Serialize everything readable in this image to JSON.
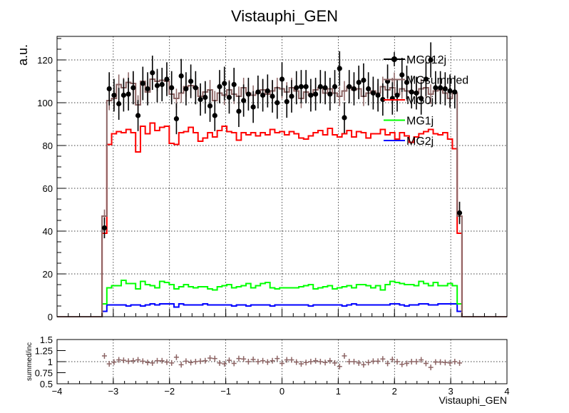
{
  "chart_data": [
    {
      "type": "line",
      "title": "Vistauphi_GEN",
      "xlabel": "",
      "ylabel": "a.u.",
      "xlim": [
        -4,
        4
      ],
      "ylim": [
        0,
        131
      ],
      "grid": true,
      "legend_position": "top-right",
      "x_ticks": [
        -4,
        -3,
        -2,
        -1,
        0,
        1,
        2,
        3,
        4
      ],
      "y_ticks": [
        0,
        20,
        40,
        60,
        80,
        100,
        120
      ],
      "bin_edges_range": [
        -3.2,
        3.2
      ],
      "series": [
        {
          "name": "MG012j",
          "style": "points",
          "color": "#000000",
          "values": [
            41.5,
            106.5,
            103.5,
            99.5,
            103.5,
            104,
            107,
            94,
            109,
            106.5,
            114,
            108,
            108.5,
            111,
            107,
            92.5,
            112.5,
            106.5,
            110,
            107,
            101.5,
            102.5,
            98.5,
            94,
            107.5,
            109,
            102.5,
            108.5,
            96,
            101,
            104,
            98,
            105,
            103.5,
            105.5,
            103,
            100,
            111,
            100.5,
            103,
            107,
            107.5,
            107.5,
            103.5,
            104,
            107.5,
            107,
            104,
            107.5,
            116,
            93,
            107.5,
            106.5,
            109.5,
            110.5,
            106.5,
            104.5,
            103.5,
            101.5,
            110,
            102,
            103.5,
            113,
            109.5,
            105,
            104.5,
            102,
            111,
            120,
            107,
            107,
            106.5,
            105.5,
            105,
            48.5
          ]
        },
        {
          "name": "MGsummed",
          "style": "step",
          "color": "#8C6464",
          "values": [
            47,
            101,
            102,
            108.5,
            107,
            109.5,
            109,
            99,
            110,
            105,
            111,
            110,
            110.5,
            110,
            104,
            102,
            104.5,
            107.5,
            108,
            107,
            103,
            105,
            106,
            101,
            104.5,
            103.5,
            106,
            104,
            103,
            107,
            104.5,
            103.5,
            104.5,
            106,
            104,
            105.5,
            107,
            106.5,
            105,
            107,
            105.5,
            102,
            105,
            103.5,
            106,
            107,
            104.5,
            106.5,
            104.5,
            103,
            105.5,
            107.5,
            106,
            106.5,
            103,
            104.5,
            105.5,
            104.5,
            107.5,
            106,
            107,
            104,
            106.5,
            105.5,
            105,
            104.5,
            106.5,
            107,
            104,
            105.5,
            106,
            104.5,
            102,
            104.5,
            47
          ]
        },
        {
          "name": "MG0j",
          "style": "step",
          "color": "#FF0000",
          "values": [
            39,
            80.5,
            85.5,
            86.5,
            86,
            87.5,
            86,
            77,
            89,
            85.5,
            90.5,
            87,
            88.5,
            89,
            81,
            80.5,
            86,
            86.5,
            88.5,
            86,
            82,
            83.5,
            86,
            84,
            87,
            89,
            86.5,
            86,
            82.5,
            86,
            85,
            86,
            84.5,
            86,
            85,
            87.5,
            86,
            86.5,
            85,
            86.5,
            85.5,
            83.5,
            83,
            84.5,
            86,
            87,
            85,
            88,
            85,
            84,
            85.5,
            87,
            84,
            86.5,
            86,
            83.5,
            85.5,
            85.5,
            87.5,
            85,
            86,
            83,
            86,
            84.5,
            81.5,
            84,
            85.5,
            86.5,
            87.5,
            85.5,
            85,
            86,
            83,
            78.5,
            39
          ]
        },
        {
          "name": "MG1j",
          "style": "step",
          "color": "#00FF00",
          "values": [
            6,
            13.5,
            14.5,
            14.5,
            17,
            15.5,
            15.5,
            13,
            16.5,
            15,
            14.5,
            13.5,
            16.5,
            16,
            15,
            13,
            14,
            15,
            14,
            13.5,
            14,
            14,
            13,
            12.5,
            14,
            14.5,
            15,
            13.5,
            14,
            14.5,
            15.5,
            13.5,
            14.5,
            15.5,
            16,
            13.5,
            13,
            13.5,
            13.5,
            13.5,
            13.5,
            14,
            14.5,
            15,
            13,
            13.5,
            14,
            14.5,
            13,
            13.5,
            14,
            14.5,
            13.5,
            15,
            15,
            14.5,
            13.5,
            14.5,
            12.5,
            15,
            16.5,
            16,
            15.5,
            15,
            15,
            14.5,
            16.5,
            15.5,
            14.5,
            16,
            14.5,
            14.5,
            15.5,
            14.5,
            6
          ]
        },
        {
          "name": "MG2j",
          "style": "step",
          "color": "#0000FF",
          "values": [
            2.5,
            5.5,
            5.5,
            5.5,
            5.5,
            5,
            5.5,
            5.5,
            5,
            5.5,
            6,
            5.5,
            6,
            6,
            6,
            4.5,
            6,
            5.5,
            5.5,
            5.5,
            5.5,
            6,
            5.5,
            5.5,
            5.5,
            5.5,
            5.5,
            5,
            5.5,
            5.5,
            5,
            5.5,
            5.5,
            5.5,
            5.5,
            5,
            5.5,
            5.5,
            5.5,
            5.5,
            5.5,
            5.5,
            5.5,
            5,
            5.5,
            5.5,
            5.5,
            5.5,
            5.5,
            5.5,
            5,
            5.5,
            6,
            5.5,
            5.5,
            5.5,
            5.5,
            5.5,
            5.5,
            5.5,
            6,
            6,
            5.5,
            5,
            5.5,
            5.5,
            6,
            6,
            5.5,
            5.5,
            6,
            6,
            6,
            6,
            2.5
          ]
        }
      ]
    },
    {
      "type": "scatter",
      "title": "",
      "xlabel": "Vistauphi_GEN",
      "ylabel": "summed/inc",
      "xlim": [
        -4,
        4
      ],
      "ylim": [
        0.5,
        1.5
      ],
      "grid": true,
      "x_ticks": [
        -4,
        -3,
        -2,
        -1,
        0,
        1,
        2,
        3,
        4
      ],
      "y_ticks": [
        0.5,
        0.75,
        1,
        1.25,
        1.5
      ],
      "series": [
        {
          "name": "",
          "style": "crosses",
          "color": "#8C6464",
          "values": [
            1.13,
            0.95,
            0.99,
            1.04,
            1.03,
            1.01,
            1.02,
            1.04,
            1.01,
            0.98,
            0.97,
            1.02,
            1.02,
            0.99,
            0.97,
            1.1,
            0.93,
            1.01,
            0.98,
            1.0,
            1.01,
            1.02,
            1.08,
            1.07,
            0.97,
            0.95,
            1.03,
            0.96,
            1.07,
            1.06,
            1.0,
            1.05,
            1.0,
            1.02,
            0.99,
            1.02,
            1.07,
            0.96,
            1.04,
            1.04,
            0.99,
            0.95,
            0.98,
            1.0,
            1.02,
            1.0,
            0.98,
            1.02,
            0.97,
            0.89,
            1.13,
            1.0,
            1.0,
            0.97,
            0.93,
            0.98,
            1.01,
            1.01,
            1.06,
            0.96,
            1.05,
            1.0,
            0.94,
            0.96,
            1.0,
            1.0,
            1.04,
            0.96,
            0.87,
            0.99,
            0.99,
            0.98,
            0.97,
            1.0,
            0.97
          ]
        }
      ]
    }
  ]
}
